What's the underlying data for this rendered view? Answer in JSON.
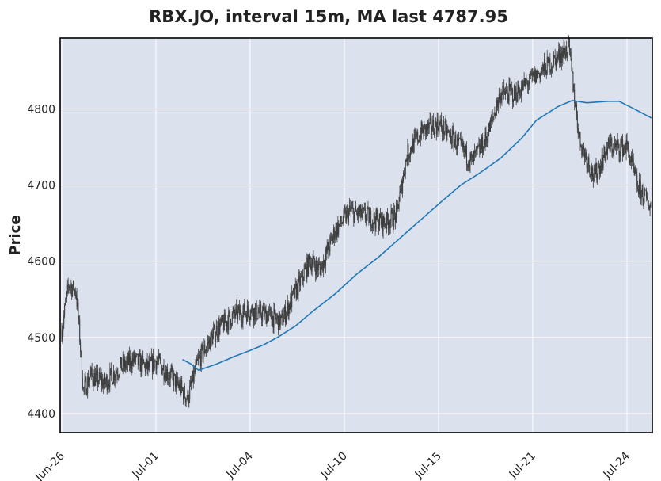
{
  "chart_data": {
    "type": "candlestick",
    "title": "RBX.JO, interval 15m, MA last 4787.95",
    "xlabel": "",
    "ylabel": "Price",
    "ylim": [
      4375,
      4893
    ],
    "yticks": [
      4400,
      4500,
      4600,
      4700,
      4800
    ],
    "grid": true,
    "x_range": [
      "2024-06-26",
      "2024-07-24"
    ],
    "xticks": [
      {
        "label": "Jun-26",
        "bar": 0
      },
      {
        "label": "Jul-01",
        "bar": 131
      },
      {
        "label": "Jul-04",
        "bar": 262
      },
      {
        "label": "Jul-10",
        "bar": 393
      },
      {
        "label": "Jul-15",
        "bar": 524
      },
      {
        "label": "Jul-21",
        "bar": 655
      },
      {
        "label": "Jul-24",
        "bar": 786
      }
    ],
    "bar_count": 820,
    "price_path": [
      [
        0,
        4510
      ],
      [
        10,
        4570
      ],
      [
        20,
        4560
      ],
      [
        25,
        4500
      ],
      [
        30,
        4430
      ],
      [
        40,
        4450
      ],
      [
        60,
        4440
      ],
      [
        80,
        4460
      ],
      [
        100,
        4470
      ],
      [
        120,
        4460
      ],
      [
        131,
        4470
      ],
      [
        160,
        4440
      ],
      [
        175,
        4420
      ],
      [
        190,
        4470
      ],
      [
        215,
        4510
      ],
      [
        240,
        4530
      ],
      [
        262,
        4535
      ],
      [
        285,
        4530
      ],
      [
        305,
        4520
      ],
      [
        325,
        4560
      ],
      [
        345,
        4600
      ],
      [
        360,
        4590
      ],
      [
        380,
        4640
      ],
      [
        400,
        4665
      ],
      [
        420,
        4660
      ],
      [
        450,
        4650
      ],
      [
        465,
        4660
      ],
      [
        480,
        4740
      ],
      [
        500,
        4770
      ],
      [
        524,
        4780
      ],
      [
        545,
        4760
      ],
      [
        570,
        4730
      ],
      [
        590,
        4760
      ],
      [
        610,
        4820
      ],
      [
        630,
        4820
      ],
      [
        655,
        4840
      ],
      [
        680,
        4860
      ],
      [
        705,
        4880
      ],
      [
        720,
        4760
      ],
      [
        740,
        4710
      ],
      [
        760,
        4750
      ],
      [
        786,
        4750
      ],
      [
        800,
        4700
      ],
      [
        820,
        4670
      ]
    ],
    "series": [
      {
        "name": "MA",
        "color": "#1f77b4",
        "points": [
          [
            168,
            4471
          ],
          [
            180,
            4465
          ],
          [
            190,
            4457
          ],
          [
            200,
            4460
          ],
          [
            215,
            4465
          ],
          [
            240,
            4475
          ],
          [
            262,
            4483
          ],
          [
            280,
            4490
          ],
          [
            300,
            4500
          ],
          [
            325,
            4515
          ],
          [
            350,
            4535
          ],
          [
            380,
            4557
          ],
          [
            410,
            4583
          ],
          [
            440,
            4605
          ],
          [
            470,
            4630
          ],
          [
            500,
            4655
          ],
          [
            530,
            4680
          ],
          [
            555,
            4700
          ],
          [
            580,
            4715
          ],
          [
            610,
            4735
          ],
          [
            640,
            4762
          ],
          [
            660,
            4785
          ],
          [
            690,
            4803
          ],
          [
            710,
            4811
          ],
          [
            730,
            4808
          ],
          [
            760,
            4810
          ],
          [
            775,
            4810
          ],
          [
            800,
            4798
          ],
          [
            820,
            4788
          ]
        ]
      }
    ],
    "colors": {
      "plot_bg": "#dce1ee",
      "grid": "#ffffff",
      "candle": "#3c3c3c",
      "frame": "#000000"
    }
  }
}
